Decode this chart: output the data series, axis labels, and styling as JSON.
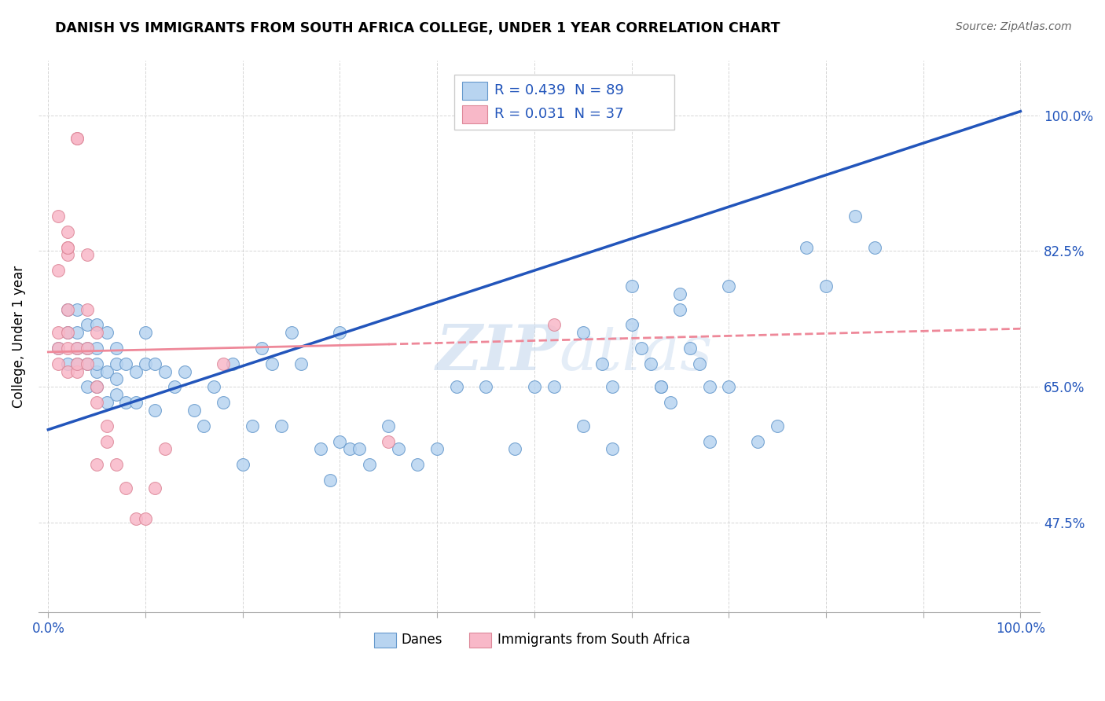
{
  "title": "DANISH VS IMMIGRANTS FROM SOUTH AFRICA COLLEGE, UNDER 1 YEAR CORRELATION CHART",
  "source": "Source: ZipAtlas.com",
  "ylabel": "College, Under 1 year",
  "yticks": [
    0.475,
    0.65,
    0.825,
    1.0
  ],
  "ytick_labels": [
    "47.5%",
    "65.0%",
    "82.5%",
    "100.0%"
  ],
  "legend_entries": [
    {
      "label_r": "R = 0.439",
      "label_n": "N = 89",
      "color": "#b8d4f0"
    },
    {
      "label_r": "R = 0.031",
      "label_n": "N = 37",
      "color": "#f8b8c8"
    }
  ],
  "danes_color": "#b8d4f0",
  "immigrants_color": "#f8b8c8",
  "danes_edge": "#6699cc",
  "immigrants_edge": "#dd8899",
  "danes_line_color": "#2255bb",
  "immigrants_line_color": "#ee8899",
  "background": "#ffffff",
  "watermark_zip": "ZIP",
  "watermark_atlas": "atlas",
  "danes_scatter_x": [
    0.01,
    0.02,
    0.02,
    0.02,
    0.03,
    0.03,
    0.03,
    0.03,
    0.04,
    0.04,
    0.04,
    0.04,
    0.05,
    0.05,
    0.05,
    0.05,
    0.05,
    0.06,
    0.06,
    0.06,
    0.07,
    0.07,
    0.07,
    0.07,
    0.08,
    0.08,
    0.09,
    0.09,
    0.1,
    0.1,
    0.11,
    0.11,
    0.12,
    0.13,
    0.14,
    0.15,
    0.16,
    0.17,
    0.18,
    0.19,
    0.2,
    0.21,
    0.22,
    0.23,
    0.24,
    0.25,
    0.26,
    0.28,
    0.29,
    0.3,
    0.3,
    0.31,
    0.32,
    0.33,
    0.35,
    0.36,
    0.38,
    0.4,
    0.42,
    0.45,
    0.48,
    0.5,
    0.52,
    0.55,
    0.58,
    0.6,
    0.63,
    0.65,
    0.68,
    0.7,
    0.73,
    0.75,
    0.78,
    0.8,
    0.83,
    0.85,
    0.55,
    0.57,
    0.58,
    0.6,
    0.61,
    0.62,
    0.63,
    0.64,
    0.65,
    0.66,
    0.67,
    0.68,
    0.7
  ],
  "danes_scatter_y": [
    0.7,
    0.68,
    0.72,
    0.75,
    0.68,
    0.7,
    0.72,
    0.75,
    0.65,
    0.68,
    0.7,
    0.73,
    0.65,
    0.67,
    0.68,
    0.7,
    0.73,
    0.63,
    0.67,
    0.72,
    0.64,
    0.66,
    0.68,
    0.7,
    0.63,
    0.68,
    0.63,
    0.67,
    0.68,
    0.72,
    0.62,
    0.68,
    0.67,
    0.65,
    0.67,
    0.62,
    0.6,
    0.65,
    0.63,
    0.68,
    0.55,
    0.6,
    0.7,
    0.68,
    0.6,
    0.72,
    0.68,
    0.57,
    0.53,
    0.58,
    0.72,
    0.57,
    0.57,
    0.55,
    0.6,
    0.57,
    0.55,
    0.57,
    0.65,
    0.65,
    0.57,
    0.65,
    0.65,
    0.6,
    0.57,
    0.78,
    0.65,
    0.77,
    0.58,
    0.65,
    0.58,
    0.6,
    0.83,
    0.78,
    0.87,
    0.83,
    0.72,
    0.68,
    0.65,
    0.73,
    0.7,
    0.68,
    0.65,
    0.63,
    0.75,
    0.7,
    0.68,
    0.65,
    0.78
  ],
  "immigrants_scatter_x": [
    0.01,
    0.01,
    0.01,
    0.01,
    0.01,
    0.02,
    0.02,
    0.02,
    0.02,
    0.02,
    0.02,
    0.02,
    0.02,
    0.03,
    0.03,
    0.03,
    0.03,
    0.03,
    0.04,
    0.04,
    0.04,
    0.04,
    0.05,
    0.05,
    0.05,
    0.05,
    0.06,
    0.06,
    0.07,
    0.08,
    0.09,
    0.1,
    0.11,
    0.12,
    0.18,
    0.35,
    0.52
  ],
  "immigrants_scatter_y": [
    0.68,
    0.7,
    0.72,
    0.8,
    0.87,
    0.67,
    0.7,
    0.72,
    0.75,
    0.82,
    0.83,
    0.83,
    0.85,
    0.67,
    0.68,
    0.7,
    0.97,
    0.97,
    0.68,
    0.7,
    0.75,
    0.82,
    0.63,
    0.65,
    0.72,
    0.55,
    0.58,
    0.6,
    0.55,
    0.52,
    0.48,
    0.48,
    0.52,
    0.57,
    0.68,
    0.58,
    0.73
  ],
  "danes_trend_x0": 0.0,
  "danes_trend_x1": 1.0,
  "danes_trend_y0": 0.595,
  "danes_trend_y1": 1.005,
  "immigrants_trend_x0": 0.0,
  "immigrants_trend_x1": 0.35,
  "immigrants_trend_solid_y0": 0.695,
  "immigrants_trend_solid_y1": 0.705,
  "immigrants_trend_dash_x0": 0.35,
  "immigrants_trend_dash_x1": 1.0,
  "immigrants_trend_dash_y0": 0.705,
  "immigrants_trend_dash_y1": 0.725,
  "xlim": [
    -0.01,
    1.02
  ],
  "ylim": [
    0.36,
    1.07
  ]
}
